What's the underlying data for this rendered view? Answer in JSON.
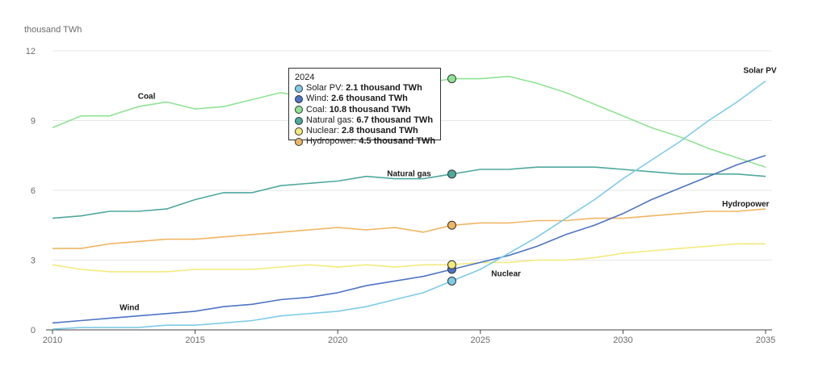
{
  "chart_data": {
    "type": "line",
    "unit_label": "thousand TWh",
    "x": [
      2010,
      2011,
      2012,
      2013,
      2014,
      2015,
      2016,
      2017,
      2018,
      2019,
      2020,
      2021,
      2022,
      2023,
      2024,
      2025,
      2026,
      2027,
      2028,
      2029,
      2030,
      2031,
      2032,
      2033,
      2034,
      2035
    ],
    "xlim": [
      2010,
      2035
    ],
    "ylim": [
      0,
      12
    ],
    "x_ticks": [
      2010,
      2015,
      2020,
      2025,
      2030,
      2035
    ],
    "y_ticks": [
      0,
      3,
      6,
      9,
      12
    ],
    "grid": "horizontal",
    "highlight_x": 2024,
    "series": [
      {
        "name": "Solar PV",
        "label": "Solar PV",
        "color": "#7ecbe8",
        "values": [
          0.03,
          0.1,
          0.1,
          0.1,
          0.2,
          0.2,
          0.3,
          0.4,
          0.6,
          0.7,
          0.8,
          1.0,
          1.3,
          1.6,
          2.1,
          2.6,
          3.3,
          4.0,
          4.8,
          5.6,
          6.5,
          7.3,
          8.1,
          9.0,
          9.8,
          10.7
        ]
      },
      {
        "name": "Wind",
        "label": "Wind",
        "color": "#4d74c4",
        "values": [
          0.3,
          0.4,
          0.5,
          0.6,
          0.7,
          0.8,
          1.0,
          1.1,
          1.3,
          1.4,
          1.6,
          1.9,
          2.1,
          2.3,
          2.6,
          2.9,
          3.2,
          3.6,
          4.1,
          4.5,
          5.0,
          5.6,
          6.1,
          6.6,
          7.1,
          7.5
        ]
      },
      {
        "name": "Coal",
        "label": "Coal",
        "color": "#8fe393",
        "values": [
          8.7,
          9.2,
          9.2,
          9.6,
          9.8,
          9.5,
          9.6,
          9.9,
          10.2,
          10.0,
          9.7,
          10.3,
          10.4,
          10.6,
          10.8,
          10.8,
          10.9,
          10.6,
          10.2,
          9.7,
          9.2,
          8.7,
          8.3,
          7.8,
          7.4,
          7.0
        ]
      },
      {
        "name": "Natural gas",
        "label": "Natural gas",
        "color": "#4ea89e",
        "values": [
          4.8,
          4.9,
          5.1,
          5.1,
          5.2,
          5.6,
          5.9,
          5.9,
          6.2,
          6.3,
          6.4,
          6.6,
          6.5,
          6.5,
          6.7,
          6.9,
          6.9,
          7.0,
          7.0,
          7.0,
          6.9,
          6.8,
          6.7,
          6.7,
          6.7,
          6.6
        ]
      },
      {
        "name": "Nuclear",
        "label": "Nuclear",
        "color": "#f4ea7c",
        "values": [
          2.8,
          2.6,
          2.5,
          2.5,
          2.5,
          2.6,
          2.6,
          2.6,
          2.7,
          2.8,
          2.7,
          2.8,
          2.7,
          2.8,
          2.8,
          2.9,
          2.9,
          3.0,
          3.0,
          3.1,
          3.3,
          3.4,
          3.5,
          3.6,
          3.7,
          3.7
        ]
      },
      {
        "name": "Hydropower",
        "label": "Hydropower",
        "color": "#efb662",
        "values": [
          3.5,
          3.5,
          3.7,
          3.8,
          3.9,
          3.9,
          4.0,
          4.1,
          4.2,
          4.3,
          4.4,
          4.3,
          4.4,
          4.2,
          4.5,
          4.6,
          4.6,
          4.7,
          4.7,
          4.8,
          4.8,
          4.9,
          5.0,
          5.1,
          5.1,
          5.2
        ]
      }
    ],
    "annotations": [
      {
        "text": "Coal",
        "series": "Coal",
        "at_x": 2013.3
      },
      {
        "text": "Natural gas",
        "series": "Natural gas",
        "at_x": 2022.5
      },
      {
        "text": "Solar PV",
        "series": "Solar PV",
        "at_x": 2034.8
      },
      {
        "text": "Hydropower",
        "series": "Hydropower",
        "at_x": 2034.3
      },
      {
        "text": "Nuclear",
        "series": "Nuclear",
        "at_x": 2025.9
      },
      {
        "text": "Wind",
        "series": "Wind",
        "at_x": 2012.7
      }
    ],
    "tooltip": {
      "year": "2024",
      "rows": [
        {
          "label": "Solar PV:",
          "value": "2.1 thousand TWh",
          "color": "#7ecbe8"
        },
        {
          "label": "Wind:",
          "value": "2.6 thousand TWh",
          "color": "#4d74c4"
        },
        {
          "label": "Coal:",
          "value": "10.8 thousand TWh",
          "color": "#8fe393"
        },
        {
          "label": "Natural gas:",
          "value": "6.7 thousand TWh",
          "color": "#4ea89e"
        },
        {
          "label": "Nuclear:",
          "value": "2.8 thousand TWh",
          "color": "#f4ea7c"
        },
        {
          "label": "Hydropower:",
          "value": "4.5 thousand TWh",
          "color": "#efb662"
        }
      ]
    }
  }
}
